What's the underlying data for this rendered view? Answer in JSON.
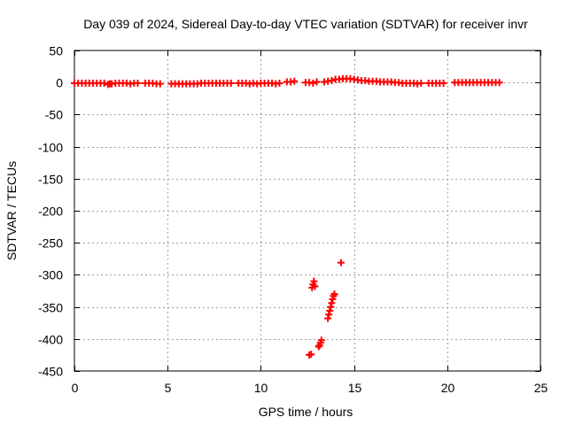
{
  "chart_data": {
    "type": "scatter",
    "title": "Day 039 of 2024, Sidereal Day-to-day VTEC variation (SDTVAR) for receiver invr",
    "xlabel": "GPS time / hours",
    "ylabel": "SDTVAR / TECUs",
    "xlim": [
      0,
      25
    ],
    "ylim": [
      -450,
      50
    ],
    "x_ticks": [
      0,
      5,
      10,
      15,
      20,
      25
    ],
    "y_ticks": [
      50,
      0,
      -50,
      -100,
      -150,
      -200,
      -250,
      -300,
      -350,
      -400,
      -450
    ],
    "grid": true,
    "legend": "none",
    "marker_color": "#ff0000",
    "series": [
      {
        "values": [
          [
            0.0,
            -1
          ],
          [
            0.2,
            -1
          ],
          [
            0.4,
            -1
          ],
          [
            0.6,
            -1
          ],
          [
            0.8,
            -1
          ],
          [
            1.0,
            -1
          ],
          [
            1.2,
            -1
          ],
          [
            1.4,
            -1
          ],
          [
            1.6,
            -1
          ],
          [
            1.8,
            -3
          ],
          [
            1.9,
            -2
          ],
          [
            2.0,
            -2
          ],
          [
            2.2,
            -1
          ],
          [
            2.4,
            -1
          ],
          [
            2.6,
            -1
          ],
          [
            2.8,
            -1
          ],
          [
            3.0,
            -2
          ],
          [
            3.2,
            -1
          ],
          [
            3.4,
            -1
          ],
          [
            3.8,
            -1
          ],
          [
            4.0,
            -1
          ],
          [
            4.2,
            -1
          ],
          [
            4.4,
            -2
          ],
          [
            4.6,
            -2
          ],
          [
            5.2,
            -2
          ],
          [
            5.4,
            -2
          ],
          [
            5.6,
            -2
          ],
          [
            5.8,
            -2
          ],
          [
            6.0,
            -2
          ],
          [
            6.2,
            -2
          ],
          [
            6.4,
            -2
          ],
          [
            6.6,
            -2
          ],
          [
            6.8,
            -1
          ],
          [
            7.0,
            -1
          ],
          [
            7.2,
            -1
          ],
          [
            7.4,
            -1
          ],
          [
            7.6,
            -1
          ],
          [
            7.8,
            -1
          ],
          [
            8.0,
            -1
          ],
          [
            8.2,
            -1
          ],
          [
            8.4,
            -1
          ],
          [
            8.8,
            -1
          ],
          [
            9.0,
            -1
          ],
          [
            9.2,
            -1
          ],
          [
            9.4,
            -2
          ],
          [
            9.6,
            -1
          ],
          [
            9.8,
            -2
          ],
          [
            10.0,
            -1
          ],
          [
            10.2,
            -1
          ],
          [
            10.4,
            -1
          ],
          [
            10.6,
            -1
          ],
          [
            10.8,
            -2
          ],
          [
            11.0,
            -1
          ],
          [
            11.4,
            1
          ],
          [
            11.6,
            1
          ],
          [
            11.8,
            2
          ],
          [
            12.4,
            0
          ],
          [
            12.6,
            0
          ],
          [
            12.8,
            -1
          ],
          [
            13.0,
            1
          ],
          [
            13.4,
            1
          ],
          [
            13.6,
            2
          ],
          [
            13.8,
            3
          ],
          [
            14.0,
            5
          ],
          [
            14.2,
            5
          ],
          [
            14.4,
            6
          ],
          [
            14.6,
            6
          ],
          [
            14.8,
            6
          ],
          [
            15.0,
            5
          ],
          [
            15.2,
            4
          ],
          [
            15.4,
            3
          ],
          [
            15.6,
            3
          ],
          [
            15.8,
            2
          ],
          [
            16.0,
            2
          ],
          [
            16.2,
            2
          ],
          [
            16.4,
            1
          ],
          [
            16.6,
            1
          ],
          [
            16.8,
            1
          ],
          [
            17.0,
            1
          ],
          [
            17.2,
            0
          ],
          [
            17.4,
            0
          ],
          [
            17.6,
            -1
          ],
          [
            17.8,
            -1
          ],
          [
            18.0,
            -1
          ],
          [
            18.2,
            -1
          ],
          [
            18.4,
            -2
          ],
          [
            18.6,
            -1
          ],
          [
            19.0,
            -1
          ],
          [
            19.2,
            -1
          ],
          [
            19.4,
            -1
          ],
          [
            19.6,
            -1
          ],
          [
            19.8,
            -1
          ],
          [
            20.4,
            0
          ],
          [
            20.6,
            0
          ],
          [
            20.8,
            0
          ],
          [
            21.0,
            0
          ],
          [
            21.2,
            0
          ],
          [
            21.4,
            0
          ],
          [
            21.6,
            0
          ],
          [
            21.8,
            0
          ],
          [
            22.0,
            0
          ],
          [
            22.2,
            0
          ],
          [
            22.4,
            0
          ],
          [
            22.6,
            0
          ],
          [
            22.8,
            0
          ],
          [
            12.6,
            -425
          ],
          [
            12.7,
            -424
          ],
          [
            12.75,
            -320
          ],
          [
            12.8,
            -315
          ],
          [
            12.85,
            -310
          ],
          [
            12.9,
            -318
          ],
          [
            13.1,
            -412
          ],
          [
            13.15,
            -410
          ],
          [
            13.2,
            -406
          ],
          [
            13.25,
            -402
          ],
          [
            13.6,
            -368
          ],
          [
            13.65,
            -362
          ],
          [
            13.7,
            -356
          ],
          [
            13.75,
            -350
          ],
          [
            13.8,
            -344
          ],
          [
            13.85,
            -338
          ],
          [
            13.9,
            -333
          ],
          [
            13.95,
            -330
          ],
          [
            14.3,
            -281
          ]
        ]
      }
    ]
  }
}
